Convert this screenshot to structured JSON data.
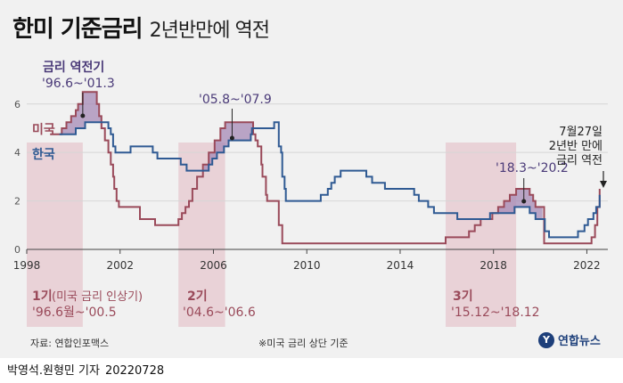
{
  "header": {
    "title": "한미 기준금리",
    "subtitle": "2년반만에 역전"
  },
  "footer": {
    "source": "자료: 연합인포맥스",
    "note": "※미국 금리 상단 기준",
    "logo_mark": "Y",
    "logo_text": "연합뉴스",
    "byline": "박영석.원형민 기자",
    "date": "20220728"
  },
  "colors": {
    "us": "#9a4a5a",
    "korea": "#2f5a93",
    "shade": "#e7cdd2",
    "inversion": "#a58ab5"
  },
  "chart_data": {
    "type": "line",
    "title": "한미 기준금리",
    "subtitle": "2년반만에 역전",
    "xlabel": "",
    "ylabel": "",
    "xlim": [
      1998.0,
      2022.9
    ],
    "ylim": [
      0,
      6.8
    ],
    "x_ticks": [
      1998,
      2002,
      2006,
      2010,
      2014,
      2018,
      2022
    ],
    "y_ticks": [
      0,
      2,
      4,
      6
    ],
    "grid": true,
    "legend": "inline labels at left",
    "series": [
      {
        "name": "미국",
        "color": "#9a4a5a",
        "points": [
          [
            1999.0,
            4.75
          ],
          [
            1999.5,
            5.0
          ],
          [
            1999.7,
            5.25
          ],
          [
            1999.9,
            5.5
          ],
          [
            2000.1,
            5.75
          ],
          [
            2000.2,
            6.0
          ],
          [
            2000.4,
            6.5
          ],
          [
            2001.0,
            6.0
          ],
          [
            2001.1,
            5.5
          ],
          [
            2001.2,
            5.0
          ],
          [
            2001.35,
            4.5
          ],
          [
            2001.5,
            4.0
          ],
          [
            2001.6,
            3.5
          ],
          [
            2001.7,
            3.0
          ],
          [
            2001.75,
            2.5
          ],
          [
            2001.85,
            2.0
          ],
          [
            2001.95,
            1.75
          ],
          [
            2002.85,
            1.25
          ],
          [
            2003.5,
            1.0
          ],
          [
            2004.5,
            1.25
          ],
          [
            2004.65,
            1.5
          ],
          [
            2004.8,
            1.75
          ],
          [
            2004.95,
            2.0
          ],
          [
            2005.1,
            2.5
          ],
          [
            2005.3,
            3.0
          ],
          [
            2005.55,
            3.5
          ],
          [
            2005.8,
            4.0
          ],
          [
            2006.05,
            4.5
          ],
          [
            2006.3,
            5.0
          ],
          [
            2006.5,
            5.25
          ],
          [
            2007.7,
            4.75
          ],
          [
            2007.8,
            4.5
          ],
          [
            2007.9,
            4.25
          ],
          [
            2008.05,
            3.5
          ],
          [
            2008.1,
            3.0
          ],
          [
            2008.25,
            2.25
          ],
          [
            2008.3,
            2.0
          ],
          [
            2008.8,
            1.0
          ],
          [
            2008.95,
            0.25
          ],
          [
            2015.95,
            0.5
          ],
          [
            2016.95,
            0.75
          ],
          [
            2017.2,
            1.0
          ],
          [
            2017.45,
            1.25
          ],
          [
            2017.95,
            1.5
          ],
          [
            2018.2,
            1.75
          ],
          [
            2018.45,
            2.0
          ],
          [
            2018.7,
            2.25
          ],
          [
            2018.97,
            2.5
          ],
          [
            2019.55,
            2.25
          ],
          [
            2019.7,
            2.0
          ],
          [
            2019.8,
            1.75
          ],
          [
            2020.17,
            0.25
          ],
          [
            2022.2,
            0.5
          ],
          [
            2022.35,
            1.0
          ],
          [
            2022.45,
            1.75
          ],
          [
            2022.55,
            2.5
          ]
        ]
      },
      {
        "name": "한국",
        "color": "#2f5a93",
        "points": [
          [
            1999.4,
            4.75
          ],
          [
            2000.1,
            5.0
          ],
          [
            2000.5,
            5.25
          ],
          [
            2001.5,
            5.0
          ],
          [
            2001.6,
            4.75
          ],
          [
            2001.7,
            4.25
          ],
          [
            2001.8,
            4.0
          ],
          [
            2002.45,
            4.25
          ],
          [
            2003.4,
            4.0
          ],
          [
            2003.6,
            3.75
          ],
          [
            2004.6,
            3.5
          ],
          [
            2004.85,
            3.25
          ],
          [
            2005.8,
            3.5
          ],
          [
            2005.95,
            3.75
          ],
          [
            2006.15,
            4.0
          ],
          [
            2006.45,
            4.25
          ],
          [
            2006.65,
            4.5
          ],
          [
            2007.6,
            4.75
          ],
          [
            2007.65,
            5.0
          ],
          [
            2008.6,
            5.25
          ],
          [
            2008.8,
            4.25
          ],
          [
            2008.9,
            4.0
          ],
          [
            2008.95,
            3.0
          ],
          [
            2009.05,
            2.5
          ],
          [
            2009.1,
            2.0
          ],
          [
            2010.6,
            2.25
          ],
          [
            2010.9,
            2.5
          ],
          [
            2011.05,
            2.75
          ],
          [
            2011.2,
            3.0
          ],
          [
            2011.45,
            3.25
          ],
          [
            2012.55,
            3.0
          ],
          [
            2012.8,
            2.75
          ],
          [
            2013.35,
            2.5
          ],
          [
            2014.6,
            2.25
          ],
          [
            2014.8,
            2.0
          ],
          [
            2015.2,
            1.75
          ],
          [
            2015.45,
            1.5
          ],
          [
            2016.45,
            1.25
          ],
          [
            2017.85,
            1.5
          ],
          [
            2018.9,
            1.75
          ],
          [
            2019.55,
            1.5
          ],
          [
            2019.8,
            1.25
          ],
          [
            2020.2,
            0.75
          ],
          [
            2020.38,
            0.5
          ],
          [
            2021.62,
            0.75
          ],
          [
            2021.9,
            1.0
          ],
          [
            2022.05,
            1.25
          ],
          [
            2022.28,
            1.5
          ],
          [
            2022.4,
            1.75
          ],
          [
            2022.55,
            2.25
          ]
        ]
      }
    ],
    "periods": [
      {
        "label": "1기",
        "detail": "(미국 금리 인상기)",
        "range": "'96.6월~'00.5",
        "x_from": 1998.0,
        "x_to": 2000.4
      },
      {
        "label": "2기",
        "range": "'04.6~'06.6",
        "x_from": 2004.5,
        "x_to": 2006.5
      },
      {
        "label": "3기",
        "range": "'15.12~'18.12",
        "x_from": 2015.95,
        "x_to": 2018.97
      }
    ],
    "inversions": [
      {
        "label_lines": [
          "금리 역전기",
          "'96.6~'01.3"
        ],
        "x_from": 1999.4,
        "x_to": 2001.25
      },
      {
        "label_lines": [
          "'05.8~'07.9"
        ],
        "x_from": 2005.6,
        "x_to": 2007.7
      },
      {
        "label_lines": [
          "'18.3~'20.2"
        ],
        "x_from": 2018.2,
        "x_to": 2020.1
      }
    ],
    "annotation": {
      "lines": [
        "7월27일",
        "2년반 만에",
        "금리 역전"
      ],
      "x": 2022.55,
      "y": 2.5
    },
    "series_labels": [
      {
        "text": "미국"
      },
      {
        "text": "한국"
      }
    ]
  }
}
